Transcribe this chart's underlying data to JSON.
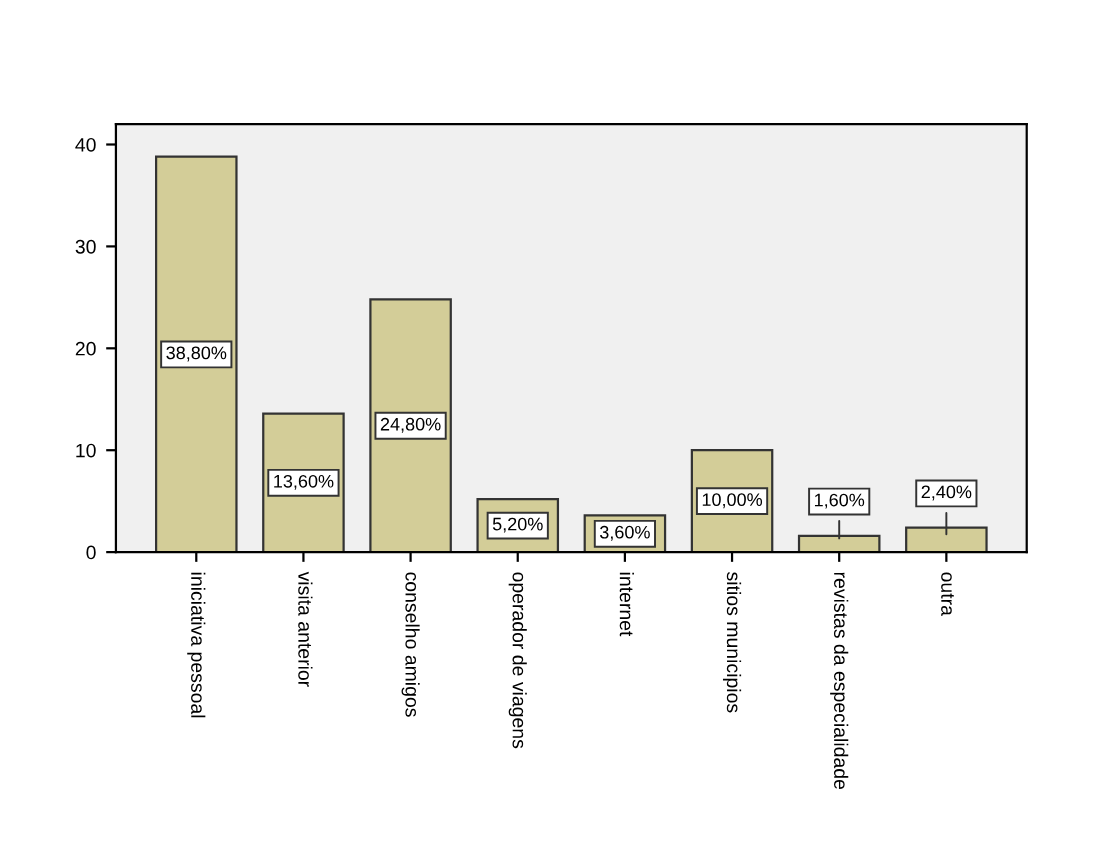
{
  "chart_data": {
    "type": "bar",
    "categories": [
      "iniciativa pessoal",
      "visita anterior",
      "conselho amigos",
      "operador de viagens",
      "internet",
      "sitios municipios",
      "revistas da especialidade",
      "outra"
    ],
    "values": [
      38.8,
      13.6,
      24.8,
      5.2,
      3.6,
      10.0,
      1.6,
      2.4
    ],
    "value_labels": [
      "38,80%",
      "13,60%",
      "24,80%",
      "5,20%",
      "3,60%",
      "10,00%",
      "1,60%",
      "2,40%"
    ],
    "color": "#d3cd98",
    "ylim": [
      0,
      42
    ],
    "yticks": [
      0,
      10,
      20,
      30,
      40
    ],
    "grid": false
  }
}
